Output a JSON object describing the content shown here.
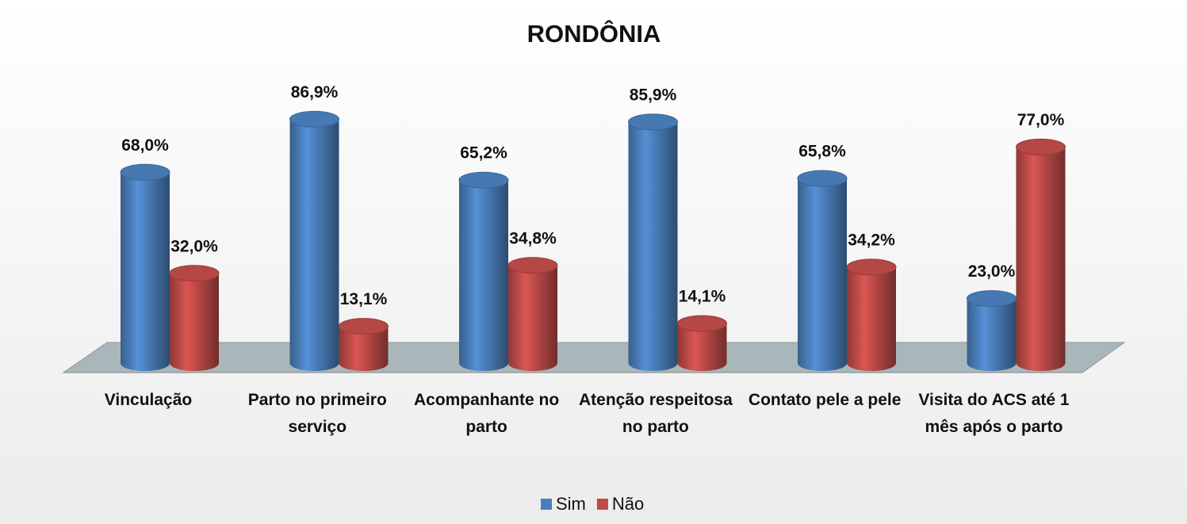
{
  "chart_data": {
    "type": "bar3d",
    "title": "RONDÔNIA",
    "categories": [
      "Vinculação",
      "Parto no primeiro serviço",
      "Acompanhante no parto",
      "Atenção respeitosa no parto",
      "Contato pele a pele",
      "Visita do ACS até 1 mês após o parto"
    ],
    "series": [
      {
        "name": "Sim",
        "color": "#4a7ebb",
        "values": [
          68.0,
          86.9,
          65.2,
          85.9,
          65.8,
          23.0
        ],
        "value_labels": [
          "68,0%",
          "86,9%",
          "65,2%",
          "85,9%",
          "65,8%",
          "23,0%"
        ]
      },
      {
        "name": "Não",
        "color": "#be4b48",
        "values": [
          32.0,
          13.1,
          34.8,
          14.1,
          34.2,
          77.0
        ],
        "value_labels": [
          "32,0%",
          "13,1%",
          "34,8%",
          "14,1%",
          "34,2%",
          "77,0%"
        ]
      }
    ],
    "ylim": [
      0,
      100
    ],
    "legend": "bottom"
  }
}
